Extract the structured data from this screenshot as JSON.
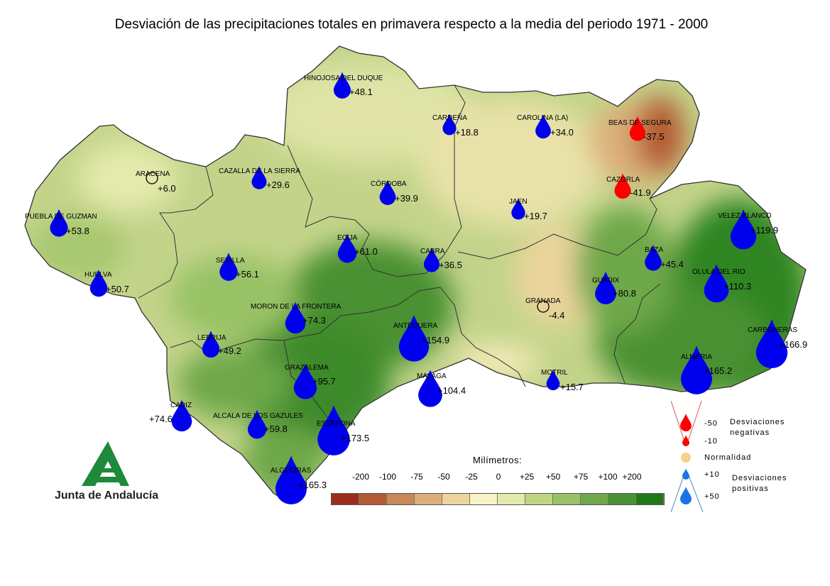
{
  "title": "Desviación de las precipitaciones totales en primavera respecto a la media del periodo 1971 - 2000",
  "logo_text": "Junta de Andalucía",
  "scale": {
    "title": "Milímetros:",
    "labels": [
      "-200",
      "-100",
      "-75",
      "-50",
      "-25",
      "0",
      "+25",
      "+50",
      "+75",
      "+100",
      "+200"
    ],
    "colors": [
      "#9b2d1a",
      "#b45a33",
      "#c8885a",
      "#dcae78",
      "#ecd49c",
      "#f8f3c6",
      "#e4eaac",
      "#c0d584",
      "#98c265",
      "#6ea84a",
      "#4a9131",
      "#1f7a16"
    ]
  },
  "legend": {
    "negative_label": "Desviaciones negativas",
    "negative_label_line1": "Desviaciones",
    "negative_label_line2": "negativas",
    "v_neg50": "-50",
    "v_neg10": "-10",
    "normal": "Normalidad",
    "v_pos10": "+10",
    "v_pos50": "+50",
    "positive_label_line1": "Desviaciones",
    "positive_label_line2": "positivas",
    "neg_color": "#ff0000",
    "normal_color": "#f5d28f",
    "pos_color": "#1a73e8"
  },
  "stations": [
    {
      "name": "HINOJOSA DEL DUQUE",
      "value": "+48.1",
      "deviation": 48.1
    },
    {
      "name": "CARDEÑA",
      "value": "+18.8",
      "deviation": 18.8
    },
    {
      "name": "CAROLINA (LA)",
      "value": "+34.0",
      "deviation": 34.0
    },
    {
      "name": "BEAS DE SEGURA",
      "value": "-37.5",
      "deviation": -37.5
    },
    {
      "name": "ARACENA",
      "value": "+6.0",
      "deviation": 6.0
    },
    {
      "name": "CAZALLA DE LA SIERRA",
      "value": "+29.6",
      "deviation": 29.6
    },
    {
      "name": "CÓRDOBA",
      "value": "+39.9",
      "deviation": 39.9
    },
    {
      "name": "CAZORLA",
      "value": "-41.9",
      "deviation": -41.9
    },
    {
      "name": "PUEBLA DE GUZMAN",
      "value": "+53.8",
      "deviation": 53.8
    },
    {
      "name": "JAEN",
      "value": "+19.7",
      "deviation": 19.7
    },
    {
      "name": "VELEZ BLANCO",
      "value": "+119.9",
      "deviation": 119.9
    },
    {
      "name": "ECIJA",
      "value": "+61.0",
      "deviation": 61.0
    },
    {
      "name": "CABRA",
      "value": "+36.5",
      "deviation": 36.5
    },
    {
      "name": "SEVILLA",
      "value": "+56.1",
      "deviation": 56.1
    },
    {
      "name": "BAZA",
      "value": "+45.4",
      "deviation": 45.4
    },
    {
      "name": "HUELVA",
      "value": "+50.7",
      "deviation": 50.7
    },
    {
      "name": "GUADIX",
      "value": "+80.8",
      "deviation": 80.8
    },
    {
      "name": "OLULA DEL RIO",
      "value": "+110.3",
      "deviation": 110.3
    },
    {
      "name": "GRANADA",
      "value": "-4.4",
      "deviation": -4.4
    },
    {
      "name": "MORON DE LA FRONTERA",
      "value": "+74.3",
      "deviation": 74.3
    },
    {
      "name": "ANTEQUERA",
      "value": "+154.9",
      "deviation": 154.9
    },
    {
      "name": "CARBONERAS",
      "value": "+166.9",
      "deviation": 166.9
    },
    {
      "name": "LEBRIJA",
      "value": "+49.2",
      "deviation": 49.2
    },
    {
      "name": "GRAZALEMA",
      "value": "+95.7",
      "deviation": 95.7
    },
    {
      "name": "MALAGA",
      "value": "+104.4",
      "deviation": 104.4
    },
    {
      "name": "MOTRIL",
      "value": "+15.7",
      "deviation": 15.7
    },
    {
      "name": "ALMERIA",
      "value": "+165.2",
      "deviation": 165.2
    },
    {
      "name": "CADIZ",
      "value": "+74.6",
      "deviation": 74.6
    },
    {
      "name": "ALCALA DE LOS GAZULES",
      "value": "+59.8",
      "deviation": 59.8
    },
    {
      "name": "ESTEPONA",
      "value": "+173.5",
      "deviation": 173.5
    },
    {
      "name": "ALGECIRAS",
      "value": "+165.3",
      "deviation": 165.3
    }
  ]
}
